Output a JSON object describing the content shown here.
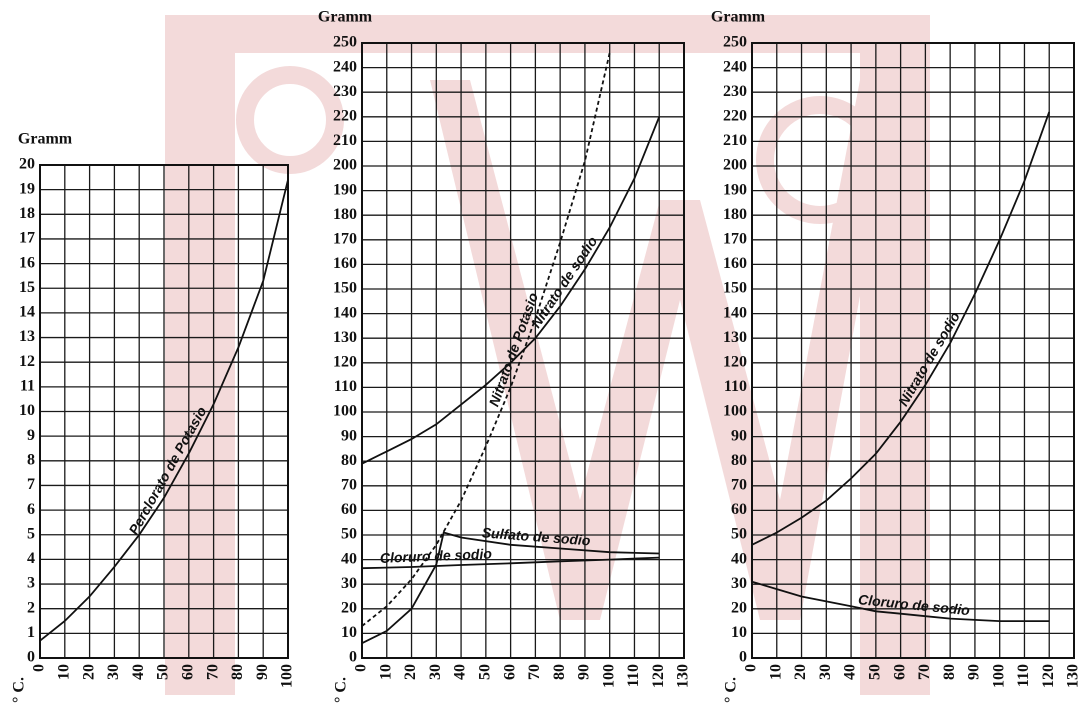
{
  "chart_data": [
    {
      "type": "line",
      "y_label": "Gramm",
      "x_label": "° C.",
      "xlim": [
        0,
        100
      ],
      "ylim": [
        0,
        20
      ],
      "xticks": [
        0,
        10,
        20,
        30,
        40,
        50,
        60,
        70,
        80,
        90,
        100
      ],
      "yticks": [
        0,
        1,
        2,
        3,
        4,
        5,
        6,
        7,
        8,
        9,
        10,
        11,
        12,
        13,
        14,
        15,
        16,
        17,
        18,
        19,
        20
      ],
      "grid": true,
      "series": [
        {
          "name": "Perclorato de Potasio",
          "color": "#111111",
          "dashed": false,
          "x": [
            0,
            10,
            20,
            30,
            40,
            50,
            60,
            70,
            80,
            90,
            100
          ],
          "values": [
            0.7,
            1.5,
            2.5,
            3.7,
            5,
            6.5,
            8.3,
            10.3,
            12.6,
            15.3,
            19.4
          ]
        }
      ]
    },
    {
      "type": "line",
      "y_label": "Gramm",
      "x_label": "° C.",
      "xlim": [
        0,
        130
      ],
      "ylim": [
        0,
        250
      ],
      "xticks": [
        0,
        10,
        20,
        30,
        40,
        50,
        60,
        70,
        80,
        90,
        100,
        110,
        120,
        130
      ],
      "yticks": [
        0,
        10,
        20,
        30,
        40,
        50,
        60,
        70,
        80,
        90,
        100,
        110,
        120,
        130,
        140,
        150,
        160,
        170,
        180,
        190,
        200,
        210,
        220,
        230,
        240,
        250
      ],
      "grid": true,
      "series": [
        {
          "name": "Nitrato de Potasio",
          "color": "#111111",
          "dashed": true,
          "x": [
            0,
            10,
            20,
            30,
            40,
            50,
            60,
            70,
            80,
            90,
            100
          ],
          "values": [
            13,
            21,
            32,
            46,
            64,
            86,
            110,
            138,
            169,
            202,
            246
          ]
        },
        {
          "name": "Nitrato de sodio",
          "color": "#111111",
          "dashed": false,
          "x": [
            0,
            10,
            20,
            30,
            40,
            50,
            60,
            70,
            80,
            90,
            100,
            110,
            120
          ],
          "values": [
            79,
            84,
            89,
            95,
            103,
            111,
            120,
            130,
            143,
            158,
            175,
            195,
            220
          ]
        },
        {
          "name": "Sulfato de sodio",
          "color": "#111111",
          "dashed": false,
          "x": [
            0,
            10,
            20,
            30,
            33,
            40,
            60,
            80,
            100,
            120
          ],
          "values": [
            6,
            11,
            20,
            38,
            51,
            49,
            46,
            44.5,
            43,
            42.5
          ]
        },
        {
          "name": "Cloruro de sodio",
          "color": "#111111",
          "dashed": false,
          "x": [
            0,
            20,
            40,
            60,
            80,
            100,
            120
          ],
          "values": [
            36.5,
            37,
            37.8,
            38.5,
            39.3,
            40,
            40.8
          ]
        }
      ]
    },
    {
      "type": "line",
      "y_label": "Gramm",
      "x_label": "° C.",
      "xlim": [
        0,
        130
      ],
      "ylim": [
        0,
        250
      ],
      "xticks": [
        0,
        10,
        20,
        30,
        40,
        50,
        60,
        70,
        80,
        90,
        100,
        110,
        120,
        130
      ],
      "yticks": [
        0,
        10,
        20,
        30,
        40,
        50,
        60,
        70,
        80,
        90,
        100,
        110,
        120,
        130,
        140,
        150,
        160,
        170,
        180,
        190,
        200,
        210,
        220,
        230,
        240,
        250
      ],
      "grid": true,
      "series": [
        {
          "name": "Nitrato de sodio",
          "color": "#111111",
          "dashed": false,
          "x": [
            0,
            10,
            20,
            30,
            40,
            50,
            60,
            70,
            80,
            90,
            100,
            110,
            120
          ],
          "values": [
            46,
            51,
            57,
            64,
            73,
            83,
            96,
            111,
            128,
            148,
            170,
            194,
            222
          ]
        },
        {
          "name": "Cloruro de sodio",
          "color": "#111111",
          "dashed": false,
          "x": [
            0,
            10,
            20,
            30,
            40,
            50,
            60,
            70,
            80,
            90,
            100,
            110,
            120
          ],
          "values": [
            31,
            28,
            25,
            23,
            21,
            19,
            18,
            17,
            16,
            15.5,
            15,
            15,
            15
          ]
        }
      ]
    }
  ]
}
